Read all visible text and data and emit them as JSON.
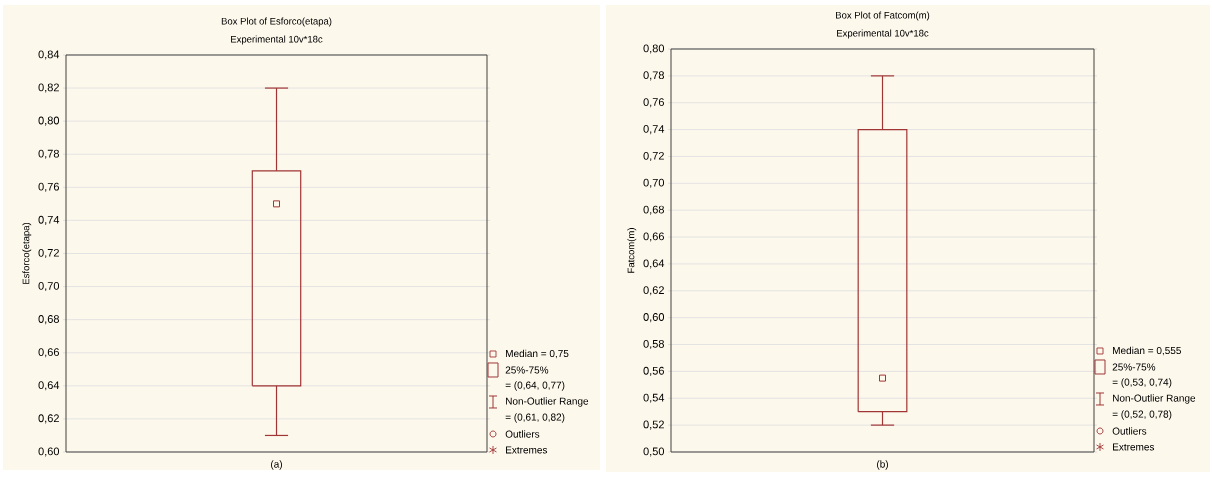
{
  "chart_data": [
    {
      "type": "box",
      "title": "Box Plot of Esforco(etapa)",
      "subtitle": "Experimental 10v*18c",
      "ylabel": "Esforco(etapa)",
      "categories": [
        null
      ],
      "boxes": [
        {
          "low": 0.61,
          "q1": 0.64,
          "median": 0.75,
          "q3": 0.77,
          "high": 0.82
        }
      ],
      "color": "#a03535",
      "marker": "square",
      "grid": "y",
      "tick_labels": "y",
      "ylim": [
        0.6,
        0.84
      ],
      "yticks": [
        {
          "value": 0.6,
          "label": "0,60"
        },
        {
          "value": 0.62,
          "label": "0,62"
        },
        {
          "value": 0.64,
          "label": "0,64"
        },
        {
          "value": 0.66,
          "label": "0,66"
        },
        {
          "value": 0.68,
          "label": "0,68"
        },
        {
          "value": 0.7,
          "label": "0,70"
        },
        {
          "value": 0.72,
          "label": "0,72"
        },
        {
          "value": 0.74,
          "label": "0,74"
        },
        {
          "value": 0.76,
          "label": "0,76"
        },
        {
          "value": 0.78,
          "label": "0,78"
        },
        {
          "value": 0.8,
          "label": "0,80"
        },
        {
          "value": 0.82,
          "label": "0,82"
        },
        {
          "value": 0.84,
          "label": "0,84"
        }
      ],
      "annotations": [
        "Median = 0,75",
        "25%-75%",
        "= (0,64, 0,77)",
        "Non-Outlier Range",
        "= (0,61, 0,82)",
        "Outliers",
        "Extremes",
        "(a)"
      ]
    },
    {
      "type": "box",
      "title": "Box Plot of Fatcom(m)",
      "subtitle": "Experimental 10v*18c",
      "ylabel": "Fatcom(m)",
      "categories": [
        null
      ],
      "boxes": [
        {
          "low": 0.52,
          "q1": 0.53,
          "median": 0.555,
          "q3": 0.74,
          "high": 0.78
        }
      ],
      "color": "#a03535",
      "marker": "square",
      "grid": "y",
      "tick_labels": "y",
      "ylim": [
        0.5,
        0.8
      ],
      "yticks": [
        {
          "value": 0.5,
          "label": "0,50"
        },
        {
          "value": 0.52,
          "label": "0,52"
        },
        {
          "value": 0.54,
          "label": "0,54"
        },
        {
          "value": 0.56,
          "label": "0,56"
        },
        {
          "value": 0.58,
          "label": "0,58"
        },
        {
          "value": 0.6,
          "label": "0,60"
        },
        {
          "value": 0.62,
          "label": "0,62"
        },
        {
          "value": 0.64,
          "label": "0,64"
        },
        {
          "value": 0.66,
          "label": "0,66"
        },
        {
          "value": 0.68,
          "label": "0,68"
        },
        {
          "value": 0.7,
          "label": "0,70"
        },
        {
          "value": 0.72,
          "label": "0,72"
        },
        {
          "value": 0.74,
          "label": "0,74"
        },
        {
          "value": 0.76,
          "label": "0,76"
        },
        {
          "value": 0.78,
          "label": "0,78"
        },
        {
          "value": 0.8,
          "label": "0,80"
        }
      ],
      "annotations": [
        "Median = 0,555",
        "25%-75%",
        "= (0,53, 0,74)",
        "Non-Outlier Range",
        "= (0,52, 0,78)",
        "Outliers",
        "Extremes",
        "(b)"
      ]
    }
  ]
}
